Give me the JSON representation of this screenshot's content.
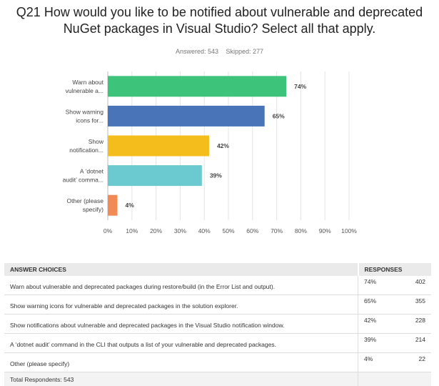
{
  "question": {
    "title_line1": "Q21 How would you like to be notified about vulnerable and deprecated",
    "title_line2": "NuGet packages in Visual Studio? Select all that apply.",
    "answered_label": "Answered: 543",
    "skipped_label": "Skipped: 277"
  },
  "chart_data": {
    "type": "bar",
    "orientation": "horizontal",
    "categories": [
      "Warn about vulnerable a...",
      "Show warning icons for...",
      "Show notification...",
      "A 'dotnet audit' comma...",
      "Other (please specify)"
    ],
    "category_label_lines": [
      [
        "Warn about",
        "vulnerable a..."
      ],
      [
        "Show warning",
        "icons for..."
      ],
      [
        "Show",
        "notification..."
      ],
      [
        "A ‘dotnet",
        "audit’ comma..."
      ],
      [
        "Other (please",
        "specify)"
      ]
    ],
    "values": [
      74,
      65,
      42,
      39,
      4
    ],
    "value_labels": [
      "74%",
      "65%",
      "42%",
      "39%",
      "4%"
    ],
    "colors": [
      "#3ec47a",
      "#4a74b8",
      "#f4bd1b",
      "#6bc9d0",
      "#f28a55"
    ],
    "xlim": [
      0,
      100
    ],
    "x_ticks": [
      "0%",
      "10%",
      "20%",
      "30%",
      "40%",
      "50%",
      "60%",
      "70%",
      "80%",
      "90%",
      "100%"
    ],
    "grid": true
  },
  "table": {
    "header_choices": "ANSWER CHOICES",
    "header_responses": "RESPONSES",
    "rows": [
      {
        "choice": "Warn about vulnerable and deprecated packages during restore/build (in the Error List and output).",
        "pct": "74%",
        "count": "402"
      },
      {
        "choice": "Show warning icons for vulnerable and deprecated packages in the solution explorer.",
        "pct": "65%",
        "count": "355"
      },
      {
        "choice": "Show notifications about vulnerable and deprecated packages in the Visual Studio notification window.",
        "pct": "42%",
        "count": "228"
      },
      {
        "choice": "A ‘dotnet audit’ command in the CLI that outputs a list of your vulnerable and deprecated packages.",
        "pct": "39%",
        "count": "214"
      },
      {
        "choice": "Other (please specify)",
        "pct": "4%",
        "count": "22"
      }
    ],
    "total_label": "Total Respondents: 543"
  }
}
